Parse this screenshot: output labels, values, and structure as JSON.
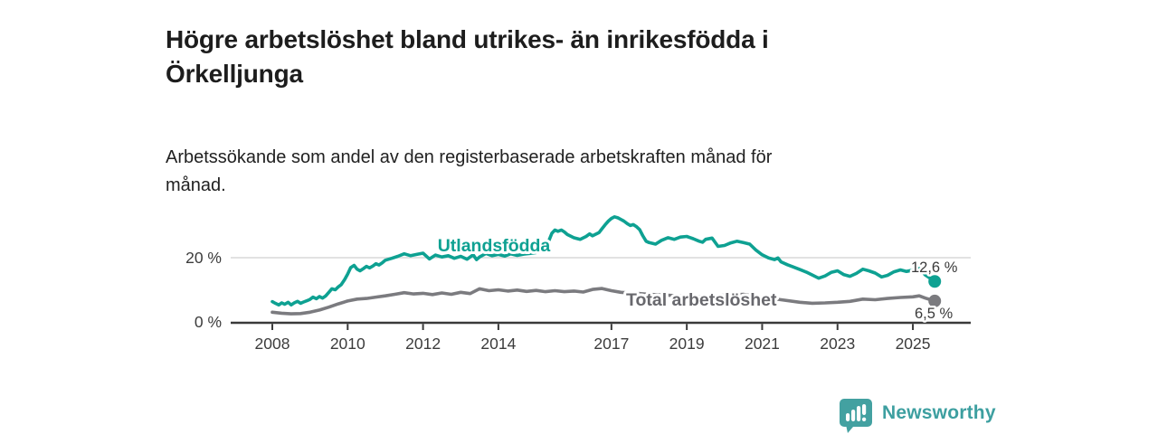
{
  "chart_data": {
    "type": "line",
    "title": "Högre arbetslöshet bland utrikes- än inrikesfödda i Örkelljunga",
    "title_lines": [
      "Högre arbetslöshet bland utrikes- än inrikesfödda i",
      "Örkelljunga"
    ],
    "subtitle": "Arbetssökande som andel av den registerbaserade arbetskraften månad för månad.",
    "subtitle_lines": [
      "Arbetssökande som andel av den registerbaserade arbetskraften månad för",
      "månad."
    ],
    "unit": "%",
    "ylim": [
      0,
      34
    ],
    "x_range": [
      2008,
      2025.6
    ],
    "grid": "single horizontal gridline at 20 %",
    "legend_position": "labels drawn on lines",
    "colors": {
      "grid": "#d9d9d9",
      "axis": "#3a3a3a",
      "tick_label": "#3c3c3c",
      "value_label": "#3a3a3a",
      "halo": "#ffffff"
    },
    "y_ticks": [
      {
        "value": 0,
        "label": "0 %"
      },
      {
        "value": 20,
        "label": "20 %"
      }
    ],
    "x_ticks": [
      {
        "value": 2008,
        "label": "2008"
      },
      {
        "value": 2010,
        "label": "2010"
      },
      {
        "value": 2012,
        "label": "2012"
      },
      {
        "value": 2014,
        "label": "2014"
      },
      {
        "value": 2017,
        "label": "2017"
      },
      {
        "value": 2019,
        "label": "2019"
      },
      {
        "value": 2021,
        "label": "2021"
      },
      {
        "value": 2023,
        "label": "2023"
      },
      {
        "value": 2025,
        "label": "2025"
      }
    ],
    "series": [
      {
        "id": "utlandsfodda",
        "name": "Utlandsfödda",
        "color": "#0ea192",
        "label_color": "#0ea192",
        "end_label": "12,6 %",
        "end_value": 12.6,
        "points": [
          [
            2008.0,
            6.3
          ],
          [
            2008.08,
            5.8
          ],
          [
            2008.17,
            5.3
          ],
          [
            2008.25,
            5.9
          ],
          [
            2008.33,
            5.5
          ],
          [
            2008.42,
            6.1
          ],
          [
            2008.5,
            5.3
          ],
          [
            2008.58,
            5.9
          ],
          [
            2008.67,
            6.4
          ],
          [
            2008.75,
            5.8
          ],
          [
            2008.83,
            6.2
          ],
          [
            2008.92,
            6.6
          ],
          [
            2009.0,
            7.0
          ],
          [
            2009.08,
            7.7
          ],
          [
            2009.17,
            7.2
          ],
          [
            2009.25,
            7.9
          ],
          [
            2009.33,
            7.4
          ],
          [
            2009.42,
            8.1
          ],
          [
            2009.5,
            9.2
          ],
          [
            2009.58,
            10.3
          ],
          [
            2009.67,
            10.0
          ],
          [
            2009.75,
            10.9
          ],
          [
            2009.83,
            11.6
          ],
          [
            2009.92,
            13.2
          ],
          [
            2010.0,
            14.9
          ],
          [
            2010.08,
            16.9
          ],
          [
            2010.17,
            17.6
          ],
          [
            2010.25,
            16.4
          ],
          [
            2010.33,
            15.9
          ],
          [
            2010.42,
            16.6
          ],
          [
            2010.5,
            17.3
          ],
          [
            2010.58,
            16.8
          ],
          [
            2010.67,
            17.4
          ],
          [
            2010.75,
            18.1
          ],
          [
            2010.83,
            17.7
          ],
          [
            2010.92,
            18.4
          ],
          [
            2011.0,
            19.2
          ],
          [
            2011.17,
            19.8
          ],
          [
            2011.33,
            20.4
          ],
          [
            2011.5,
            21.2
          ],
          [
            2011.67,
            20.6
          ],
          [
            2011.83,
            21.0
          ],
          [
            2012.0,
            21.4
          ],
          [
            2012.17,
            19.6
          ],
          [
            2012.33,
            20.8
          ],
          [
            2012.5,
            20.2
          ],
          [
            2012.67,
            20.6
          ],
          [
            2012.83,
            19.8
          ],
          [
            2013.0,
            20.4
          ],
          [
            2013.17,
            19.5
          ],
          [
            2013.33,
            20.9
          ],
          [
            2013.42,
            19.4
          ],
          [
            2013.5,
            20.2
          ],
          [
            2013.67,
            21.3
          ],
          [
            2013.83,
            20.6
          ],
          [
            2014.0,
            21.0
          ],
          [
            2014.17,
            20.5
          ],
          [
            2014.33,
            21.2
          ],
          [
            2014.5,
            20.7
          ],
          [
            2014.67,
            21.1
          ],
          [
            2014.83,
            21.3
          ],
          [
            2015.0,
            21.6
          ],
          [
            2015.17,
            22.4
          ],
          [
            2015.33,
            25.0
          ],
          [
            2015.42,
            27.6
          ],
          [
            2015.5,
            28.6
          ],
          [
            2015.58,
            28.2
          ],
          [
            2015.67,
            28.6
          ],
          [
            2015.75,
            28.0
          ],
          [
            2015.83,
            27.2
          ],
          [
            2016.0,
            26.2
          ],
          [
            2016.17,
            25.7
          ],
          [
            2016.33,
            26.6
          ],
          [
            2016.42,
            27.4
          ],
          [
            2016.5,
            26.8
          ],
          [
            2016.67,
            27.8
          ],
          [
            2016.75,
            29.0
          ],
          [
            2016.83,
            30.2
          ],
          [
            2016.92,
            31.4
          ],
          [
            2017.0,
            32.2
          ],
          [
            2017.08,
            32.7
          ],
          [
            2017.17,
            32.4
          ],
          [
            2017.25,
            31.9
          ],
          [
            2017.33,
            31.4
          ],
          [
            2017.42,
            30.6
          ],
          [
            2017.5,
            30.0
          ],
          [
            2017.58,
            30.3
          ],
          [
            2017.67,
            29.6
          ],
          [
            2017.75,
            28.7
          ],
          [
            2017.83,
            26.9
          ],
          [
            2017.92,
            25.1
          ],
          [
            2018.0,
            24.7
          ],
          [
            2018.17,
            24.2
          ],
          [
            2018.33,
            25.4
          ],
          [
            2018.5,
            26.2
          ],
          [
            2018.67,
            25.7
          ],
          [
            2018.83,
            26.4
          ],
          [
            2019.0,
            26.6
          ],
          [
            2019.17,
            25.9
          ],
          [
            2019.33,
            25.1
          ],
          [
            2019.42,
            24.8
          ],
          [
            2019.5,
            25.7
          ],
          [
            2019.67,
            26.1
          ],
          [
            2019.83,
            23.5
          ],
          [
            2020.0,
            23.8
          ],
          [
            2020.17,
            24.6
          ],
          [
            2020.33,
            25.1
          ],
          [
            2020.5,
            24.7
          ],
          [
            2020.67,
            24.2
          ],
          [
            2020.83,
            22.4
          ],
          [
            2021.0,
            20.9
          ],
          [
            2021.17,
            19.9
          ],
          [
            2021.33,
            19.4
          ],
          [
            2021.42,
            19.9
          ],
          [
            2021.5,
            18.7
          ],
          [
            2021.67,
            17.8
          ],
          [
            2021.83,
            17.1
          ],
          [
            2022.0,
            16.3
          ],
          [
            2022.17,
            15.5
          ],
          [
            2022.33,
            14.6
          ],
          [
            2022.5,
            13.6
          ],
          [
            2022.67,
            14.3
          ],
          [
            2022.83,
            15.4
          ],
          [
            2023.0,
            15.9
          ],
          [
            2023.17,
            14.7
          ],
          [
            2023.33,
            14.2
          ],
          [
            2023.5,
            15.1
          ],
          [
            2023.67,
            16.4
          ],
          [
            2023.83,
            15.9
          ],
          [
            2024.0,
            15.2
          ],
          [
            2024.17,
            14.0
          ],
          [
            2024.33,
            14.5
          ],
          [
            2024.5,
            15.6
          ],
          [
            2024.67,
            16.2
          ],
          [
            2024.83,
            15.7
          ],
          [
            2025.0,
            16.1
          ],
          [
            2025.17,
            16.6
          ],
          [
            2025.33,
            14.6
          ],
          [
            2025.58,
            12.6
          ]
        ]
      },
      {
        "id": "total",
        "name": "Total arbetslöshet",
        "color": "#7b7b7f",
        "label_color": "#68686d",
        "end_label": "6,5 %",
        "end_value": 6.5,
        "points": [
          [
            2008.0,
            3.0
          ],
          [
            2008.25,
            2.7
          ],
          [
            2008.5,
            2.5
          ],
          [
            2008.75,
            2.6
          ],
          [
            2009.0,
            3.0
          ],
          [
            2009.25,
            3.7
          ],
          [
            2009.5,
            4.6
          ],
          [
            2009.75,
            5.6
          ],
          [
            2010.0,
            6.5
          ],
          [
            2010.25,
            7.1
          ],
          [
            2010.5,
            7.3
          ],
          [
            2010.75,
            7.7
          ],
          [
            2011.0,
            8.1
          ],
          [
            2011.25,
            8.6
          ],
          [
            2011.5,
            9.1
          ],
          [
            2011.75,
            8.7
          ],
          [
            2012.0,
            8.9
          ],
          [
            2012.25,
            8.5
          ],
          [
            2012.5,
            9.0
          ],
          [
            2012.75,
            8.6
          ],
          [
            2013.0,
            9.2
          ],
          [
            2013.25,
            8.8
          ],
          [
            2013.5,
            10.3
          ],
          [
            2013.75,
            9.7
          ],
          [
            2014.0,
            10.0
          ],
          [
            2014.25,
            9.6
          ],
          [
            2014.5,
            9.9
          ],
          [
            2014.75,
            9.5
          ],
          [
            2015.0,
            9.8
          ],
          [
            2015.25,
            9.4
          ],
          [
            2015.5,
            9.7
          ],
          [
            2015.75,
            9.4
          ],
          [
            2016.0,
            9.6
          ],
          [
            2016.25,
            9.3
          ],
          [
            2016.5,
            10.1
          ],
          [
            2016.75,
            10.4
          ],
          [
            2017.0,
            9.7
          ],
          [
            2017.25,
            9.2
          ],
          [
            2017.5,
            9.0
          ],
          [
            2017.75,
            8.8
          ],
          [
            2018.0,
            8.6
          ],
          [
            2018.5,
            8.3
          ],
          [
            2019.0,
            8.0
          ],
          [
            2019.5,
            7.9
          ],
          [
            2020.0,
            8.3
          ],
          [
            2020.5,
            8.6
          ],
          [
            2021.0,
            7.7
          ],
          [
            2021.5,
            6.9
          ],
          [
            2022.0,
            6.1
          ],
          [
            2022.33,
            5.8
          ],
          [
            2022.67,
            5.9
          ],
          [
            2023.0,
            6.1
          ],
          [
            2023.33,
            6.4
          ],
          [
            2023.67,
            7.1
          ],
          [
            2024.0,
            6.9
          ],
          [
            2024.33,
            7.3
          ],
          [
            2024.67,
            7.6
          ],
          [
            2025.0,
            7.8
          ],
          [
            2025.17,
            8.1
          ],
          [
            2025.33,
            7.4
          ],
          [
            2025.58,
            6.5
          ]
        ]
      }
    ]
  },
  "footer": {
    "brand": "Newsworthy",
    "brand_color": "#3d9fa0",
    "logo_icon": "bar-chart-speech-bubble"
  }
}
